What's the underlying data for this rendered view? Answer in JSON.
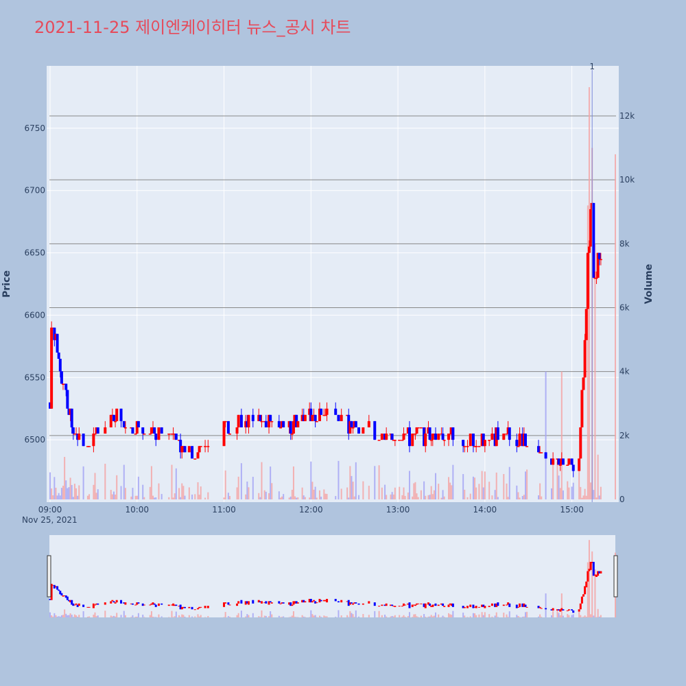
{
  "title": "2021-11-25 제이엔케이히터 뉴스_공시 차트",
  "colors": {
    "title": "#e64a5a",
    "page_bg": "#b0c4de",
    "plot_bg": "#e5ecf6",
    "up": "#ff0000",
    "down": "#0000ff",
    "vol_up": "#f4a6a6",
    "vol_down": "#a6a6f4",
    "grid": "#ffffff",
    "vol_grid": "#888888"
  },
  "chart_data": {
    "type": "candlestick",
    "title": "2021-11-25 제이엔케이히터 뉴스_공시 차트",
    "ylabel": "Price",
    "y2label": "Volume",
    "date_label": "Nov 25, 2021",
    "x_range": [
      "09:00",
      "15:30"
    ],
    "ylim": [
      6450,
      6800
    ],
    "y_ticks": [
      6500,
      6550,
      6600,
      6650,
      6700,
      6750
    ],
    "y2lim": [
      0,
      13500
    ],
    "y2_ticks": [
      0,
      2000,
      4000,
      6000,
      8000,
      10000,
      12000
    ],
    "y2_tick_labels": [
      "0",
      "2k",
      "4k",
      "6k",
      "8k",
      "10k",
      "12k"
    ],
    "x_ticks": [
      "09:00",
      "10:00",
      "11:00",
      "12:00",
      "13:00",
      "14:00",
      "15:00"
    ],
    "annotation": {
      "time": "15:14",
      "text": "1"
    },
    "open_price": 6530,
    "anchors": [
      {
        "t": "09:01",
        "p": 6590
      },
      {
        "t": "09:04",
        "p": 6580
      },
      {
        "t": "09:08",
        "p": 6550
      },
      {
        "t": "09:12",
        "p": 6530
      },
      {
        "t": "09:18",
        "p": 6500
      },
      {
        "t": "09:25",
        "p": 6490
      },
      {
        "t": "09:40",
        "p": 6520
      },
      {
        "t": "10:00",
        "p": 6510
      },
      {
        "t": "10:20",
        "p": 6500
      },
      {
        "t": "10:40",
        "p": 6490
      },
      {
        "t": "11:00",
        "p": 6510
      },
      {
        "t": "11:20",
        "p": 6520
      },
      {
        "t": "11:40",
        "p": 6510
      },
      {
        "t": "12:10",
        "p": 6520
      },
      {
        "t": "12:30",
        "p": 6510
      },
      {
        "t": "13:00",
        "p": 6500
      },
      {
        "t": "13:30",
        "p": 6505
      },
      {
        "t": "14:00",
        "p": 6500
      },
      {
        "t": "14:20",
        "p": 6505
      },
      {
        "t": "14:40",
        "p": 6490
      },
      {
        "t": "14:55",
        "p": 6475
      },
      {
        "t": "15:05",
        "p": 6490
      },
      {
        "t": "15:10",
        "p": 6600
      },
      {
        "t": "15:13",
        "p": 6700
      },
      {
        "t": "15:15",
        "p": 6650
      },
      {
        "t": "15:17",
        "p": 6620
      },
      {
        "t": "15:19",
        "p": 6650
      }
    ],
    "volume_peaks": [
      {
        "t": "14:42",
        "v": 4000
      },
      {
        "t": "14:53",
        "v": 4000
      },
      {
        "t": "15:11",
        "v": 9200
      },
      {
        "t": "15:12",
        "v": 12900
      },
      {
        "t": "15:14",
        "v": 11000
      },
      {
        "t": "15:16",
        "v": 8000
      },
      {
        "t": "15:18",
        "v": 1400
      },
      {
        "t": "15:30",
        "v": 10800
      }
    ]
  }
}
